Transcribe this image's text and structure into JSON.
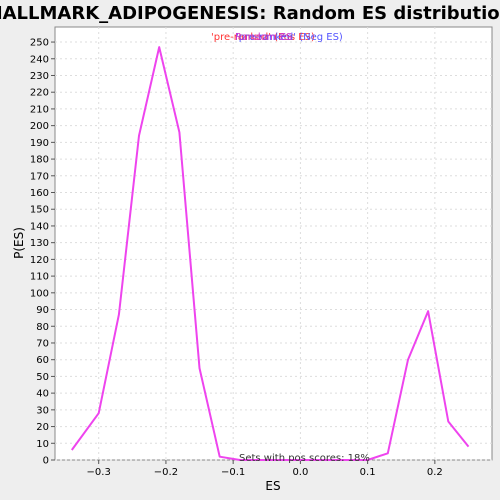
{
  "chart_data": {
    "type": "line",
    "title": "HALLMARK_ADIPOGENESIS: Random ES distribution",
    "xlabel": "ES",
    "ylabel": "P(ES)",
    "xlim": [
      -0.365,
      0.285
    ],
    "ylim": [
      0,
      259
    ],
    "xticks": [
      -0.3,
      -0.2,
      -0.1,
      0.0,
      0.1,
      0.2
    ],
    "xtick_labels": [
      "−0.3",
      "−0.2",
      "−0.1",
      "0.0",
      "0.1",
      "0.2"
    ],
    "yticks": [
      0,
      10,
      20,
      30,
      40,
      50,
      60,
      70,
      80,
      90,
      100,
      110,
      120,
      130,
      140,
      150,
      160,
      170,
      180,
      190,
      200,
      210,
      220,
      230,
      240,
      250
    ],
    "grid": true,
    "legend": {
      "placement": "top-center",
      "entries": [
        {
          "label": "'pre-ranked' (Pos ES)",
          "color": "#ff3333"
        },
        {
          "label": "'pre-ranked' (Neg ES)",
          "color": "#5555ff"
        },
        {
          "label": "Random ES",
          "color": "#cc33cc"
        }
      ]
    },
    "series": [
      {
        "color": "#ee44ee",
        "x": [
          -0.34,
          -0.3,
          -0.27,
          -0.24,
          -0.21,
          -0.18,
          -0.15,
          -0.12,
          -0.09,
          -0.06,
          0.1,
          0.13,
          0.16,
          0.19,
          0.22,
          0.25
        ],
        "y": [
          6,
          28,
          87,
          194,
          247,
          196,
          55,
          2,
          0,
          0,
          0,
          4,
          60,
          89,
          23,
          8
        ]
      }
    ],
    "annotation": "Sets with pos scores: 18%"
  },
  "colors": {
    "background": "#eeeeee",
    "plot_background": "#ffffff",
    "grid": "#dddddd",
    "axis": "#888888"
  }
}
